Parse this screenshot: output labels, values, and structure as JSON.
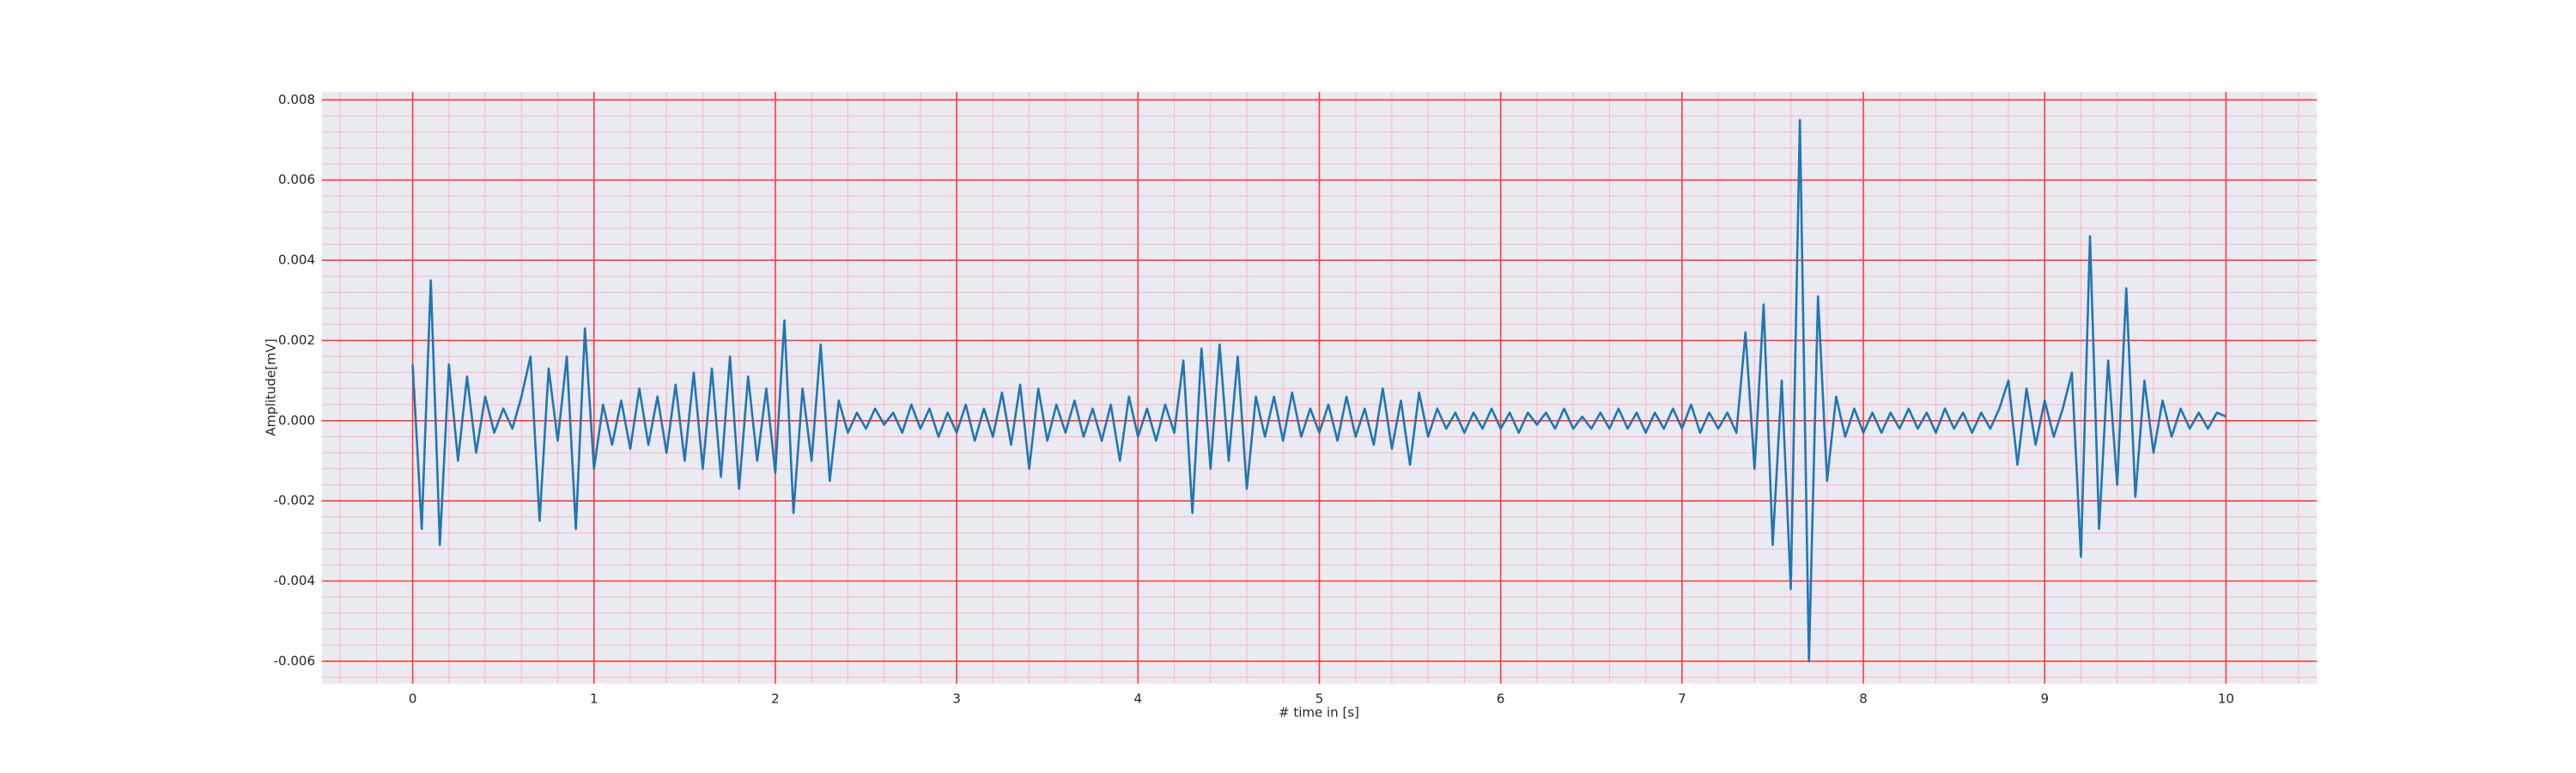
{
  "chart_data": {
    "type": "line",
    "xlabel": "# time in [s]",
    "ylabel": "Amplitude[mV]",
    "x": [
      0,
      0.05,
      0.1,
      0.15,
      0.2,
      0.25,
      0.3,
      0.35,
      0.4,
      0.45,
      0.5,
      0.55,
      0.6,
      0.65,
      0.7,
      0.75,
      0.8,
      0.85,
      0.9,
      0.95,
      1,
      1.05,
      1.1,
      1.15,
      1.2,
      1.25,
      1.3,
      1.35,
      1.4,
      1.45,
      1.5,
      1.55,
      1.6,
      1.65,
      1.7,
      1.75,
      1.8,
      1.85,
      1.9,
      1.95,
      2,
      2.05,
      2.1,
      2.15,
      2.2,
      2.25,
      2.3,
      2.35,
      2.4,
      2.45,
      2.5,
      2.55,
      2.6,
      2.65,
      2.7,
      2.75,
      2.8,
      2.85,
      2.9,
      2.95,
      3,
      3.05,
      3.1,
      3.15,
      3.2,
      3.25,
      3.3,
      3.35,
      3.4,
      3.45,
      3.5,
      3.55,
      3.6,
      3.65,
      3.7,
      3.75,
      3.8,
      3.85,
      3.9,
      3.95,
      4,
      4.05,
      4.1,
      4.15,
      4.2,
      4.25,
      4.3,
      4.35,
      4.4,
      4.45,
      4.5,
      4.55,
      4.6,
      4.65,
      4.7,
      4.75,
      4.8,
      4.85,
      4.9,
      4.95,
      5,
      5.05,
      5.1,
      5.15,
      5.2,
      5.25,
      5.3,
      5.35,
      5.4,
      5.45,
      5.5,
      5.55,
      5.6,
      5.65,
      5.7,
      5.75,
      5.8,
      5.85,
      5.9,
      5.95,
      6,
      6.05,
      6.1,
      6.15,
      6.2,
      6.25,
      6.3,
      6.35,
      6.4,
      6.45,
      6.5,
      6.55,
      6.6,
      6.65,
      6.7,
      6.75,
      6.8,
      6.85,
      6.9,
      6.95,
      7,
      7.05,
      7.1,
      7.15,
      7.2,
      7.25,
      7.3,
      7.35,
      7.4,
      7.45,
      7.5,
      7.55,
      7.6,
      7.65,
      7.7,
      7.75,
      7.8,
      7.85,
      7.9,
      7.95,
      8,
      8.05,
      8.1,
      8.15,
      8.2,
      8.25,
      8.3,
      8.35,
      8.4,
      8.45,
      8.5,
      8.55,
      8.6,
      8.65,
      8.7,
      8.75,
      8.8,
      8.85,
      8.9,
      8.95,
      9,
      9.05,
      9.1,
      9.15,
      9.2,
      9.25,
      9.3,
      9.35,
      9.4,
      9.45,
      9.5,
      9.55,
      9.6,
      9.65,
      9.7,
      9.75,
      9.8,
      9.85,
      9.9,
      9.95,
      10
    ],
    "series": [
      {
        "color": "#1f77b4",
        "values": [
          0.0014,
          -0.0027,
          0.0035,
          -0.0031,
          0.0014,
          -0.001,
          0.0011,
          -0.0008,
          0.0006,
          -0.0003,
          0.0003,
          -0.0002,
          0.0006,
          0.0016,
          -0.0025,
          0.0013,
          -0.0005,
          0.0016,
          -0.0027,
          0.0023,
          -0.0012,
          0.0004,
          -0.0006,
          0.0005,
          -0.0007,
          0.0008,
          -0.0006,
          0.0006,
          -0.0008,
          0.0009,
          -0.001,
          0.0012,
          -0.0012,
          0.0013,
          -0.0014,
          0.0016,
          -0.0017,
          0.0011,
          -0.001,
          0.0008,
          -0.0013,
          0.0025,
          -0.0023,
          0.0008,
          -0.001,
          0.0019,
          -0.0015,
          0.0005,
          -0.0003,
          0.0002,
          -0.0002,
          0.0003,
          -0.0001,
          0.0002,
          -0.0003,
          0.0004,
          -0.0002,
          0.0003,
          -0.0004,
          0.0002,
          -0.0003,
          0.0004,
          -0.0005,
          0.0003,
          -0.0004,
          0.0007,
          -0.0006,
          0.0009,
          -0.0012,
          0.0008,
          -0.0005,
          0.0004,
          -0.0003,
          0.0005,
          -0.0004,
          0.0003,
          -0.0005,
          0.0004,
          -0.001,
          0.0006,
          -0.0004,
          0.0003,
          -0.0005,
          0.0004,
          -0.0003,
          0.0015,
          -0.0023,
          0.0018,
          -0.0012,
          0.0019,
          -0.001,
          0.0016,
          -0.0017,
          0.0006,
          -0.0004,
          0.0006,
          -0.0005,
          0.0007,
          -0.0004,
          0.0003,
          -0.0003,
          0.0004,
          -0.0005,
          0.0006,
          -0.0004,
          0.0003,
          -0.0006,
          0.0008,
          -0.0007,
          0.0005,
          -0.0011,
          0.0007,
          -0.0004,
          0.0003,
          -0.0002,
          0.0002,
          -0.0003,
          0.0002,
          -0.0002,
          0.0003,
          -0.0002,
          0.0002,
          -0.0003,
          0.0002,
          -0.0001,
          0.0002,
          -0.0002,
          0.0003,
          -0.0002,
          0.0001,
          -0.0002,
          0.0002,
          -0.0002,
          0.0003,
          -0.0002,
          0.0002,
          -0.0003,
          0.0002,
          -0.0002,
          0.0003,
          -0.0002,
          0.0004,
          -0.0003,
          0.0002,
          -0.0002,
          0.0002,
          -0.0003,
          0.0022,
          -0.0012,
          0.0029,
          -0.0031,
          0.001,
          -0.0042,
          0.0075,
          -0.006,
          0.0031,
          -0.0015,
          0.0006,
          -0.0004,
          0.0003,
          -0.0003,
          0.0002,
          -0.0003,
          0.0002,
          -0.0002,
          0.0003,
          -0.0002,
          0.0002,
          -0.0003,
          0.0003,
          -0.0002,
          0.0002,
          -0.0003,
          0.0002,
          -0.0002,
          0.0003,
          0.001,
          -0.0011,
          0.0008,
          -0.0006,
          0.0005,
          -0.0004,
          0.0003,
          0.0012,
          -0.0034,
          0.0046,
          -0.0027,
          0.0015,
          -0.0016,
          0.0033,
          -0.0019,
          0.001,
          -0.0008,
          0.0005,
          -0.0004,
          0.0003,
          -0.0002,
          0.0002,
          -0.0002,
          0.0002,
          0.0001
        ]
      }
    ],
    "xlim": [
      -0.5,
      10.5
    ],
    "xticks": [
      0,
      1,
      2,
      3,
      4,
      5,
      6,
      7,
      8,
      9,
      10
    ],
    "ylim": [
      -0.00656,
      0.0082
    ],
    "yticks": [
      -0.006,
      -0.004,
      -0.002,
      {
        "value": 0,
        "label": "0.000"
      },
      0.002,
      0.004,
      0.006,
      0.008
    ],
    "grid": true,
    "minor_grid": true,
    "grid_color": "#ff3b3b",
    "minor_grid_color": "#ffb3c0",
    "background": "#eaeaf2"
  }
}
